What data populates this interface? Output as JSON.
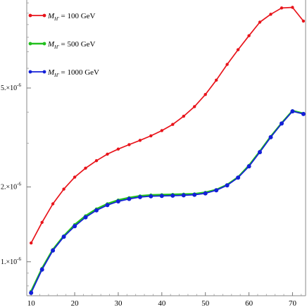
{
  "chart_data": {
    "type": "line",
    "title": "",
    "xlabel": "",
    "ylabel": "",
    "y_scale": "log",
    "xlim": [
      9,
      73
    ],
    "ylim": [
      7.3e-07,
      1.13e-05
    ],
    "x_ticks": [
      10,
      20,
      30,
      40,
      50,
      60,
      70
    ],
    "x_tick_labels": [
      "10",
      "20",
      "30",
      "40",
      "50",
      "60",
      "70"
    ],
    "y_ticks": [
      1e-06,
      2e-06,
      5e-06
    ],
    "y_tick_labels": [
      {
        "mantissa": "1.",
        "base": "×10",
        "exp": "-6"
      },
      {
        "mantissa": "2.",
        "base": "×10",
        "exp": "-6"
      },
      {
        "mantissa": "5.",
        "base": "×10",
        "exp": "-6"
      }
    ],
    "grid": false,
    "legend_position": "top-left",
    "x": [
      10,
      12.5,
      15,
      17.5,
      20,
      22.5,
      25,
      27.5,
      30,
      32.5,
      35,
      37.5,
      40,
      42.5,
      45,
      47.5,
      50,
      52.5,
      55,
      57.5,
      60,
      62.5,
      65,
      67.5,
      70,
      72.5
    ],
    "series": [
      {
        "name_main": "M",
        "name_sub": "H'",
        "name_rest": " = 100 GeV",
        "color": "#e8141b",
        "marker_size": 2.2,
        "values": [
          1.19e-06,
          1.44e-06,
          1.71e-06,
          1.96e-06,
          2.19e-06,
          2.38e-06,
          2.55e-06,
          2.71e-06,
          2.84e-06,
          2.96e-06,
          3.08e-06,
          3.21e-06,
          3.37e-06,
          3.57e-06,
          3.85e-06,
          4.21e-06,
          4.71e-06,
          5.38e-06,
          6.22e-06,
          7.13e-06,
          8.12e-06,
          9.2e-06,
          9.9e-06,
          1.05e-05,
          1.055e-05,
          9.3e-06
        ]
      },
      {
        "name_main": "M",
        "name_sub": "H'",
        "name_rest": " = 500 GeV",
        "color": "#22c01e",
        "marker_size": 2.2,
        "values": [
          7.6e-07,
          9.4e-07,
          1.12e-06,
          1.27e-06,
          1.41e-06,
          1.53e-06,
          1.63e-06,
          1.71e-06,
          1.77e-06,
          1.81e-06,
          1.84e-06,
          1.855e-06,
          1.86e-06,
          1.865e-06,
          1.87e-06,
          1.875e-06,
          1.9e-06,
          1.95e-06,
          2.04e-06,
          2.19e-06,
          2.44e-06,
          2.78e-06,
          3.19e-06,
          3.61e-06,
          4.05e-06,
          3.95e-06
        ]
      },
      {
        "name_main": "M",
        "name_sub": "H'",
        "name_rest": " = 1000 GeV",
        "color": "#1420d8",
        "marker_size": 3,
        "values": [
          7.5e-07,
          9.3e-07,
          1.11e-06,
          1.26e-06,
          1.39e-06,
          1.51e-06,
          1.61e-06,
          1.69e-06,
          1.75e-06,
          1.79e-06,
          1.82e-06,
          1.835e-06,
          1.84e-06,
          1.845e-06,
          1.85e-06,
          1.86e-06,
          1.885e-06,
          1.94e-06,
          2.03e-06,
          2.18e-06,
          2.42e-06,
          2.76e-06,
          3.17e-06,
          3.6e-06,
          4.03e-06,
          3.93e-06
        ]
      }
    ]
  }
}
